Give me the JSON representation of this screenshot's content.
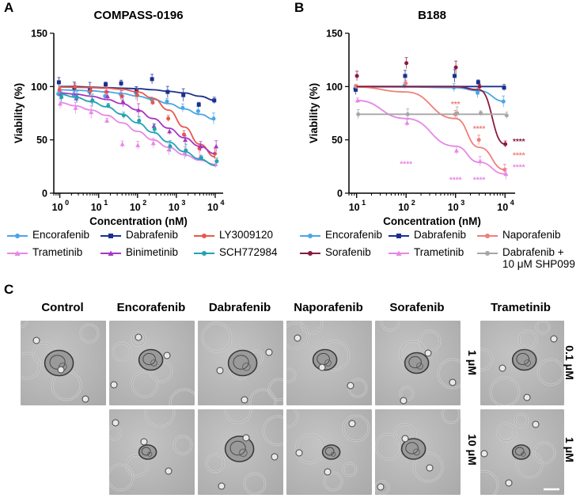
{
  "panel_labels": {
    "a": "A",
    "b": "B",
    "c": "C"
  },
  "chart_data": [
    {
      "type": "line",
      "panel": "A",
      "title": "COMPASS-0196",
      "xlabel": "Concentration (nM)",
      "ylabel": "Viability (%)",
      "xscale": "log",
      "xlim": [
        0.7,
        16000
      ],
      "ylim": [
        0,
        150
      ],
      "x_ticks": [
        1,
        10,
        100,
        1000,
        10000
      ],
      "x_tick_labels": [
        "10",
        "10",
        "10",
        "10",
        "10"
      ],
      "x_tick_exps": [
        "0",
        "1",
        "2",
        "3",
        "4"
      ],
      "y_ticks": [
        0,
        50,
        100,
        150
      ],
      "y_tick_labels": [
        "0",
        "50",
        "100",
        "150"
      ],
      "legend_position": "bottom",
      "series": [
        {
          "name": "Encorafenib",
          "color": "#4aa6e6",
          "marker": "circle",
          "x": [
            1,
            2.5,
            6.3,
            16,
            40,
            100,
            250,
            630,
            1600,
            4000,
            10000
          ],
          "values": [
            93,
            92,
            95,
            91,
            93,
            94,
            88,
            86,
            80,
            77,
            70
          ],
          "fit": [
            97,
            96.5,
            96,
            95,
            93.5,
            91,
            88,
            84,
            79,
            74,
            69
          ]
        },
        {
          "name": "Dabrafenib",
          "color": "#1b2f8f",
          "marker": "square",
          "x": [
            1,
            2.5,
            6.3,
            16,
            40,
            100,
            250,
            630,
            1600,
            4000,
            10000
          ],
          "values": [
            104,
            99,
            98,
            102,
            103,
            96,
            107,
            95,
            92,
            83,
            87
          ],
          "fit": [
            100,
            100,
            99.5,
            99,
            98.5,
            98,
            97,
            95.5,
            94,
            91,
            87
          ]
        },
        {
          "name": "LY3009120",
          "color": "#e8574a",
          "marker": "circle",
          "x": [
            1,
            2.5,
            6.3,
            16,
            40,
            100,
            250,
            630,
            1600,
            4000,
            10000
          ],
          "values": [
            97,
            100,
            96,
            95,
            91,
            92,
            85,
            70,
            55,
            42,
            37
          ],
          "fit": [
            99.5,
            99.3,
            99,
            98.5,
            97.5,
            95,
            89,
            78,
            62,
            46,
            34
          ]
        },
        {
          "name": "Trametinib",
          "color": "#e787e8",
          "marker": "triangle",
          "x": [
            1,
            2.5,
            6.3,
            16,
            40,
            100,
            250,
            630,
            1600,
            4000,
            10000
          ],
          "values": [
            84,
            80,
            76,
            68,
            46,
            45,
            47,
            41,
            38,
            34,
            27
          ],
          "fit": [
            85,
            82,
            78,
            73,
            66,
            58,
            50,
            43,
            36,
            31,
            27
          ]
        },
        {
          "name": "Binimetinib",
          "color": "#a637c4",
          "marker": "triangle",
          "x": [
            1,
            2.5,
            6.3,
            16,
            40,
            100,
            250,
            630,
            1600,
            4000,
            10000
          ],
          "values": [
            93,
            89,
            87,
            91,
            86,
            78,
            63,
            58,
            50,
            44,
            44
          ],
          "fit": [
            94,
            93,
            91,
            88,
            84,
            78,
            70,
            61,
            52,
            44,
            37
          ]
        },
        {
          "name": "SCH772984",
          "color": "#22a3b3",
          "marker": "circle",
          "x": [
            1,
            2.5,
            6.3,
            16,
            40,
            100,
            250,
            630,
            1600,
            4000,
            10000
          ],
          "values": [
            90,
            90,
            87,
            82,
            73,
            68,
            60,
            44,
            40,
            33,
            30
          ],
          "fit": [
            93,
            90,
            86,
            81,
            74,
            66,
            57,
            48,
            39,
            32,
            26
          ]
        }
      ]
    },
    {
      "type": "line",
      "panel": "B",
      "title": "B188",
      "xlabel": "Concentration (nM)",
      "ylabel": "Viability (%)",
      "xscale": "log",
      "xlim": [
        7,
        16000
      ],
      "ylim": [
        0,
        150
      ],
      "x_ticks": [
        10,
        100,
        1000,
        10000
      ],
      "x_tick_labels": [
        "10",
        "10",
        "10",
        "10"
      ],
      "x_tick_exps": [
        "1",
        "2",
        "3",
        "4"
      ],
      "y_ticks": [
        0,
        50,
        100,
        150
      ],
      "y_tick_labels": [
        "0",
        "50",
        "100",
        "150"
      ],
      "legend_position": "bottom",
      "series": [
        {
          "name": "Encorafenib",
          "color": "#4aa6e6",
          "marker": "circle",
          "x": [
            10,
            100,
            1000,
            3000,
            10000
          ],
          "values": [
            98,
            101,
            99,
            94,
            86
          ],
          "fit": [
            99.8,
            99.6,
            99,
            96,
            86
          ]
        },
        {
          "name": "Dabrafenib",
          "color": "#1b2f8f",
          "marker": "square",
          "x": [
            10,
            100,
            1000,
            3000,
            10000
          ],
          "values": [
            97,
            110,
            110,
            104,
            99
          ],
          "fit": [
            100,
            100,
            100,
            100,
            100
          ]
        },
        {
          "name": "Naporafenib",
          "color": "#f07f7a",
          "marker": "circle",
          "x": [
            10,
            100,
            1000,
            3000,
            10000
          ],
          "values": [
            100,
            103,
            74,
            50,
            22
          ],
          "fit": [
            99.5,
            95,
            70,
            43,
            22
          ]
        },
        {
          "name": "Sorafenib",
          "color": "#8b1a3d",
          "marker": "circle",
          "x": [
            10,
            100,
            1000,
            3000,
            10000
          ],
          "values": [
            110,
            122,
            118,
            100,
            46
          ],
          "fit": [
            100,
            100,
            100,
            97,
            46
          ]
        },
        {
          "name": "Trametinib",
          "color": "#e787e8",
          "marker": "triangle",
          "x": [
            10,
            100,
            1000,
            3000,
            10000
          ],
          "values": [
            87,
            66,
            40,
            30,
            18
          ],
          "fit": [
            87,
            70,
            44,
            29,
            18
          ]
        },
        {
          "name": "Dabrafenib +\n10 μM SHP099",
          "color": "#a6a6a6",
          "marker": "circle",
          "x": [
            10,
            100,
            1000,
            3000,
            10000
          ],
          "values": [
            74,
            74,
            75,
            75,
            73
          ],
          "fit": [
            74,
            74,
            74,
            74,
            74
          ]
        }
      ],
      "annotations": [
        {
          "text": "****",
          "x": 100,
          "y": 25,
          "color": "#e787e8"
        },
        {
          "text": "***",
          "x": 1000,
          "y": 81,
          "color": "#f07f7a"
        },
        {
          "text": "****",
          "x": 3000,
          "y": 58,
          "color": "#f07f7a"
        },
        {
          "text": "****",
          "x": 1000,
          "y": 10,
          "color": "#e787e8"
        },
        {
          "text": "****",
          "x": 3000,
          "y": 10,
          "color": "#e787e8"
        },
        {
          "text": "****",
          "x": 16000,
          "y": 46,
          "color": "#8b1a3d"
        },
        {
          "text": "****",
          "x": 16000,
          "y": 33,
          "color": "#f07f7a"
        },
        {
          "text": "****",
          "x": 16000,
          "y": 22,
          "color": "#e787e8"
        }
      ]
    }
  ],
  "micrographs": {
    "columns": [
      "Control",
      "Encorafenib",
      "Dabrafenib",
      "Naporafenib",
      "Sorafenib",
      "Trametinib"
    ],
    "row_labels_main": [
      "1 μM",
      "10 μM"
    ],
    "row_labels_trametinib": [
      "0.1 μM",
      "1 μM"
    ]
  }
}
